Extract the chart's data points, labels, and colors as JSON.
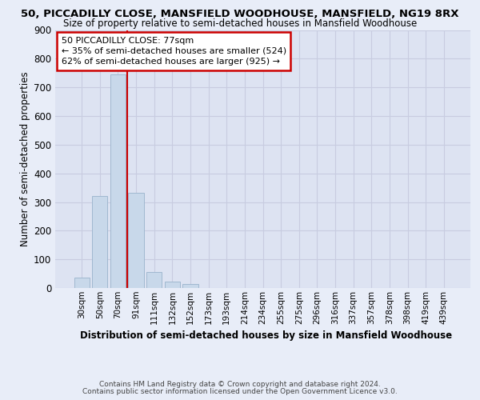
{
  "title_line1": "50, PICCADILLY CLOSE, MANSFIELD WOODHOUSE, MANSFIELD, NG19 8RX",
  "title_line2": "Size of property relative to semi-detached houses in Mansfield Woodhouse",
  "xlabel": "Distribution of semi-detached houses by size in Mansfield Woodhouse",
  "ylabel": "Number of semi-detached properties",
  "footer1": "Contains HM Land Registry data © Crown copyright and database right 2024.",
  "footer2": "Contains public sector information licensed under the Open Government Licence v3.0.",
  "categories": [
    "30sqm",
    "50sqm",
    "70sqm",
    "91sqm",
    "111sqm",
    "132sqm",
    "152sqm",
    "173sqm",
    "193sqm",
    "214sqm",
    "234sqm",
    "255sqm",
    "275sqm",
    "296sqm",
    "316sqm",
    "337sqm",
    "357sqm",
    "378sqm",
    "398sqm",
    "419sqm",
    "439sqm"
  ],
  "values": [
    35,
    322,
    745,
    332,
    57,
    22,
    13,
    0,
    0,
    0,
    0,
    0,
    0,
    0,
    0,
    0,
    0,
    0,
    0,
    0,
    0
  ],
  "bar_color": "#c8d8ea",
  "bar_edge_color": "#a0b8d0",
  "redline_x": 2.5,
  "annotation_title": "50 PICCADILLY CLOSE: 77sqm",
  "annotation_smaller": "← 35% of semi-detached houses are smaller (524)",
  "annotation_larger": "62% of semi-detached houses are larger (925) →",
  "annotation_box_color": "#ffffff",
  "annotation_box_edge": "#cc0000",
  "redline_color": "#cc0000",
  "ylim": [
    0,
    900
  ],
  "yticks": [
    0,
    100,
    200,
    300,
    400,
    500,
    600,
    700,
    800,
    900
  ],
  "grid_color": "#c8cce0",
  "bg_color": "#e8edf8",
  "axes_bg_color": "#dde3f2"
}
